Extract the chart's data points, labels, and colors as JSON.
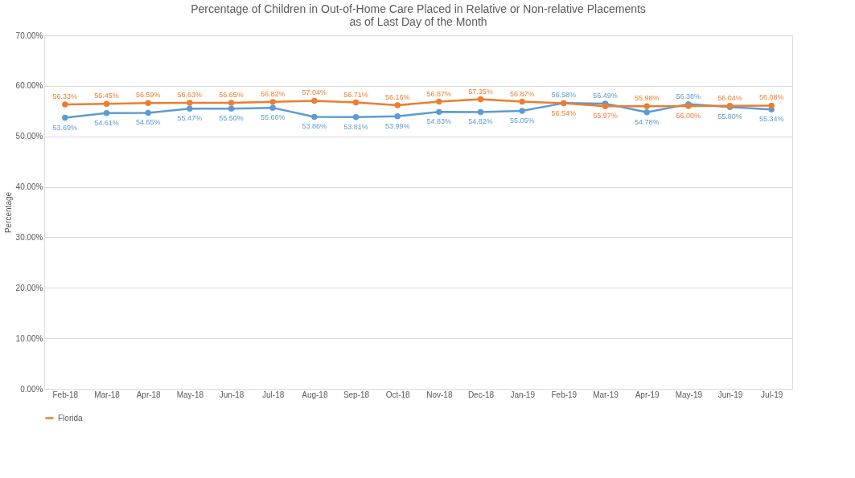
{
  "chart_data": {
    "type": "line",
    "title": [
      "Percentage of Children in Out-of-Home Care Placed in Relative or Non-relative Placements",
      "as of Last Day of the Month"
    ],
    "ylabel": "Percentage",
    "categories": [
      "Feb-18",
      "Mar-18",
      "Apr-18",
      "May-18",
      "Jun-18",
      "Jul-18",
      "Aug-18",
      "Sep-18",
      "Oct-18",
      "Nov-18",
      "Dec-18",
      "Jan-19",
      "Feb-19",
      "Mar-19",
      "Apr-19",
      "May-19",
      "Jun-19",
      "Jul-19"
    ],
    "series": [
      {
        "color": "#5b9bd5",
        "values": [
          53.69,
          54.61,
          54.65,
          55.47,
          55.5,
          55.66,
          53.86,
          53.81,
          53.99,
          54.83,
          54.82,
          55.05,
          56.58,
          56.49,
          54.78,
          56.38,
          55.8,
          55.34
        ],
        "value_labels": [
          "53.69%",
          "54.61%",
          "54.65%",
          "55.47%",
          "55.50%",
          "55.66%",
          "53.86%",
          "53.81%",
          "53.99%",
          "54.83%",
          "54.82%",
          "55.05%",
          "56.58%",
          "56.49%",
          "54.78%",
          "56.38%",
          "55.80%",
          "55.34%"
        ]
      },
      {
        "name": "Florida",
        "color": "#ed7d31",
        "values": [
          56.33,
          56.45,
          56.59,
          56.63,
          56.65,
          56.82,
          57.04,
          56.71,
          56.16,
          56.87,
          57.35,
          56.87,
          56.54,
          55.97,
          55.98,
          56.0,
          56.04,
          56.08
        ],
        "value_labels": [
          "56.33%",
          "56.45%",
          "56.59%",
          "56.63%",
          "56.65%",
          "56.82%",
          "57.04%",
          "56.71%",
          "56.16%",
          "56.87%",
          "57.35%",
          "56.87%",
          "56.54%",
          "55.97%",
          "55.98%",
          "56.00%",
          "56.04%",
          "56.08%"
        ]
      }
    ],
    "ylim": [
      0,
      70
    ],
    "yticks": [
      {
        "value": 0,
        "label": "0.00%"
      },
      {
        "value": 10,
        "label": "10.00%"
      },
      {
        "value": 20,
        "label": "20.00%"
      },
      {
        "value": 30,
        "label": "30.00%"
      },
      {
        "value": 40,
        "label": "40.00%"
      },
      {
        "value": 50,
        "label": "50.00%"
      },
      {
        "value": 60,
        "label": "60.00%"
      },
      {
        "value": 70,
        "label": "70.00%"
      }
    ],
    "grid": "y",
    "legend": "bottom",
    "marker": "circle",
    "line_style": "solid"
  }
}
